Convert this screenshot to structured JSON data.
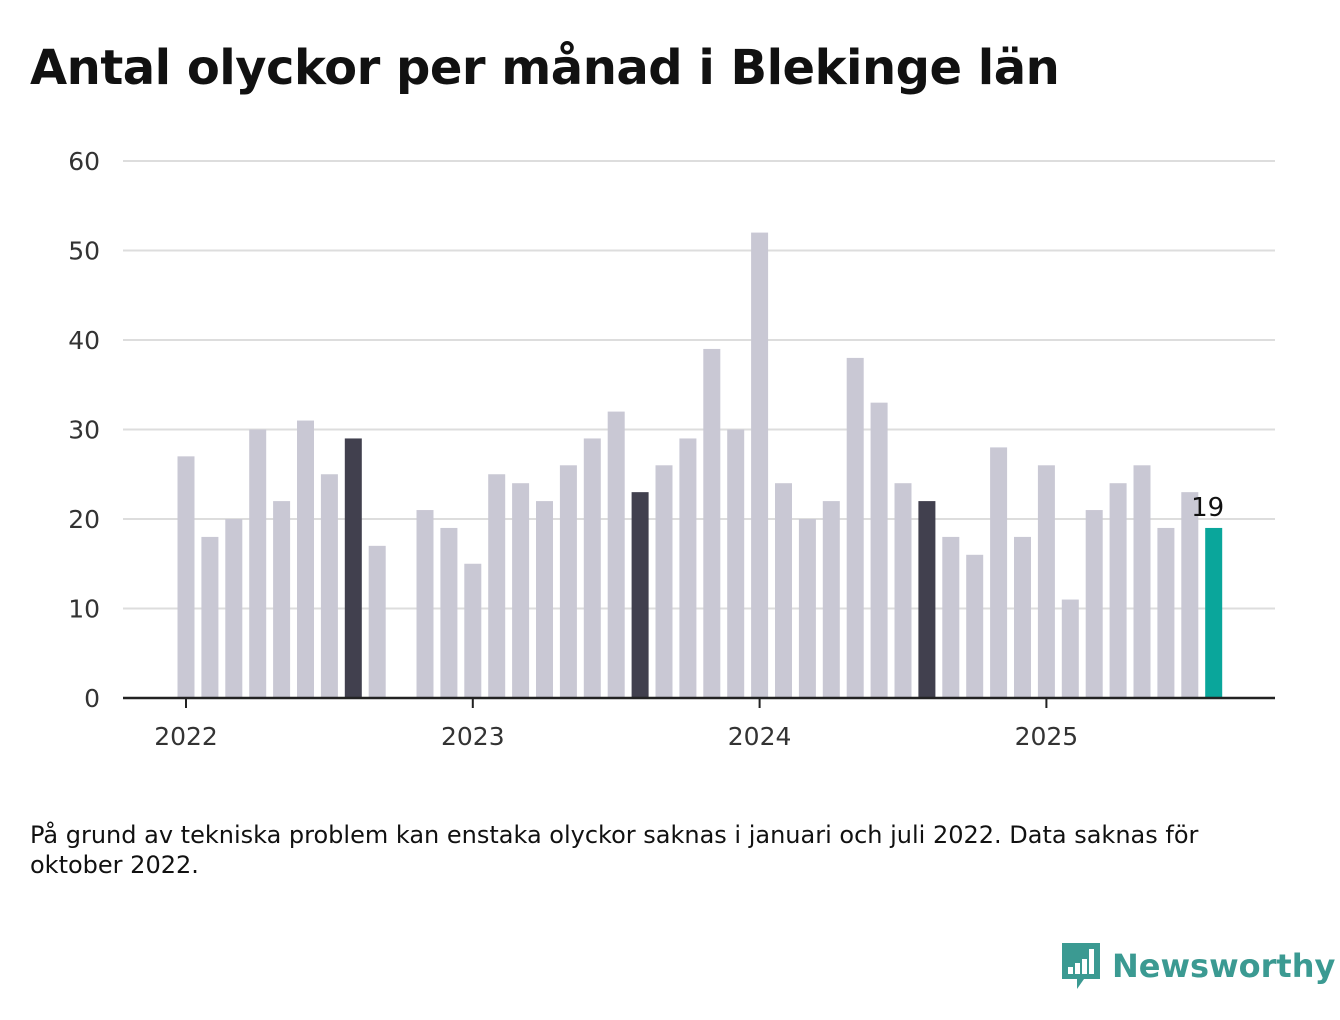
{
  "chart_data": {
    "type": "bar",
    "title": "Antal olyckor per månad i Blekinge län",
    "ylim": [
      0,
      60
    ],
    "yticks": [
      0,
      10,
      20,
      30,
      40,
      50,
      60
    ],
    "xticks": [
      {
        "index": 0,
        "label": "2022"
      },
      {
        "index": 12,
        "label": "2023"
      },
      {
        "index": 24,
        "label": "2024"
      },
      {
        "index": 36,
        "label": "2025"
      }
    ],
    "x": [
      "2022-01",
      "2022-02",
      "2022-03",
      "2022-04",
      "2022-05",
      "2022-06",
      "2022-07",
      "2022-08",
      "2022-09",
      "2022-10",
      "2022-11",
      "2022-12",
      "2023-01",
      "2023-02",
      "2023-03",
      "2023-04",
      "2023-05",
      "2023-06",
      "2023-07",
      "2023-08",
      "2023-09",
      "2023-10",
      "2023-11",
      "2023-12",
      "2024-01",
      "2024-02",
      "2024-03",
      "2024-04",
      "2024-05",
      "2024-06",
      "2024-07",
      "2024-08",
      "2024-09",
      "2024-10",
      "2024-11",
      "2024-12",
      "2025-01",
      "2025-02",
      "2025-03",
      "2025-04",
      "2025-05",
      "2025-06",
      "2025-07",
      "2025-08"
    ],
    "values": [
      27,
      18,
      20,
      30,
      22,
      31,
      25,
      29,
      17,
      null,
      21,
      19,
      15,
      25,
      24,
      22,
      26,
      29,
      32,
      23,
      26,
      29,
      39,
      30,
      52,
      24,
      20,
      22,
      38,
      33,
      24,
      22,
      18,
      16,
      28,
      18,
      26,
      11,
      21,
      24,
      26,
      19,
      23,
      19
    ],
    "highlight_months": [
      "2022-08",
      "2023-08",
      "2024-08"
    ],
    "latest": {
      "x": "2025-08",
      "value": 19,
      "label": "19"
    },
    "colors": {
      "default": "#c9c8d4",
      "highlight": "#41404e",
      "latest": "#0aa69b",
      "grid": "#dddddd",
      "axis": "#222222"
    },
    "grid": true,
    "legend": "none"
  },
  "note": "På grund av tekniska problem kan enstaka olyckor saknas i januari och juli 2022. Data saknas för oktober 2022.",
  "brand": {
    "name": "Newsworthy",
    "icon": "newsworthy-logo-icon",
    "color": "#3b9a92"
  }
}
